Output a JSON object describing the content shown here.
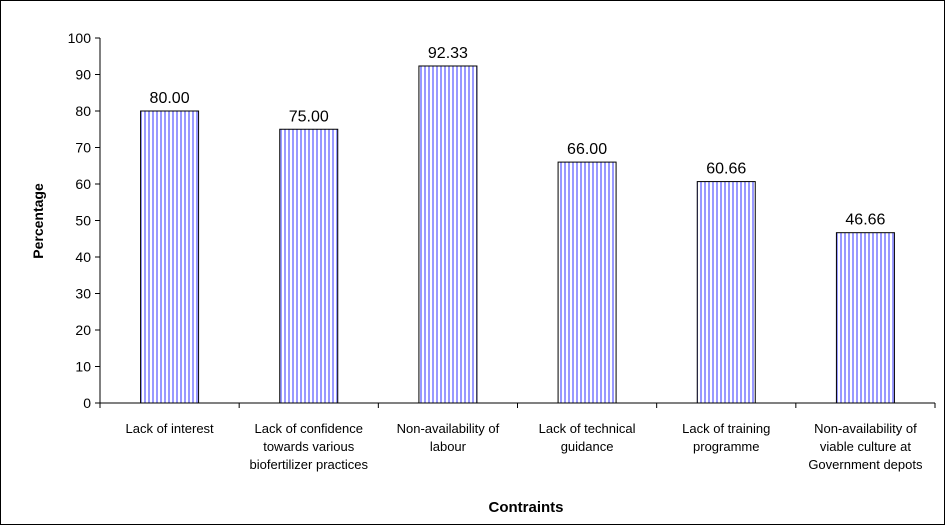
{
  "chart_data": {
    "type": "bar",
    "title": "",
    "xlabel": "Contraints",
    "ylabel": "Percentage",
    "ylim": [
      0,
      100
    ],
    "yticks": [
      0,
      10,
      20,
      30,
      40,
      50,
      60,
      70,
      80,
      90,
      100
    ],
    "categories": [
      [
        "Lack of interest"
      ],
      [
        "Lack of confidence",
        "towards various",
        "biofertilizer practices"
      ],
      [
        "Non-availability of",
        "labour"
      ],
      [
        "Lack of technical",
        "guidance"
      ],
      [
        "Lack of training",
        "programme"
      ],
      [
        "Non-availability of",
        "viable culture at",
        "Government depots"
      ]
    ],
    "values": [
      80.0,
      75.0,
      92.33,
      66.0,
      60.66,
      46.66
    ],
    "data_labels": [
      "80.00",
      "75.00",
      "92.33",
      "66.00",
      "60.66",
      "46.66"
    ],
    "grid": false,
    "legend": "none",
    "colors": {
      "bar_stripe": "#9999ff",
      "bar_background": "#ffffff",
      "bar_border": "#000000"
    }
  }
}
